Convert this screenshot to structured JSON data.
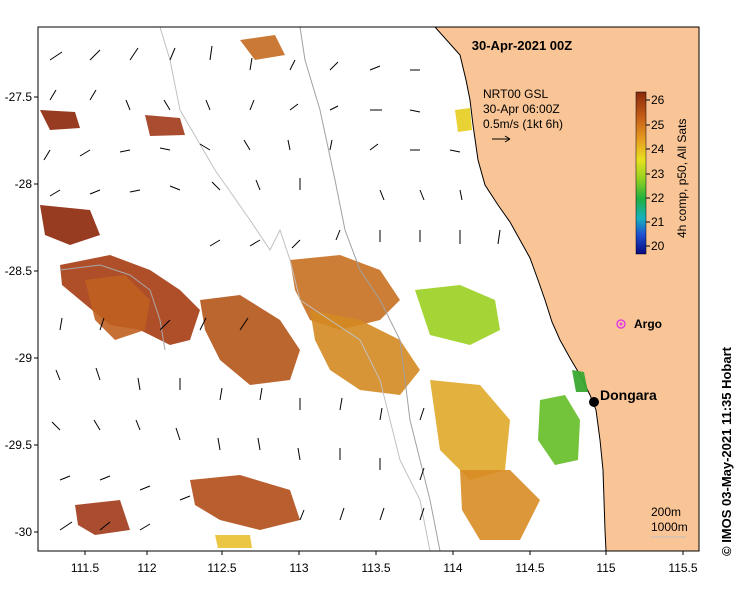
{
  "title": "30-Apr-2021 00Z",
  "credit": "©  IMOS 03-May-2021 11:35 Hobart",
  "current_legend": {
    "line1": "NRT00 GSL",
    "line2": "30-Apr 06:00Z",
    "line3": "0.5m/s (1kt 6h)"
  },
  "colorbar": {
    "label": "4h comp, p50, All Sats",
    "ticks": [
      "26",
      "25",
      "24",
      "23",
      "22",
      "21",
      "20"
    ],
    "min": 20,
    "max": 26.3
  },
  "lat_ticks": [
    "-27.5",
    "-28",
    "-28.5",
    "-29",
    "-29.5",
    "-30"
  ],
  "lon_ticks": [
    "111.5",
    "112",
    "112.5",
    "113",
    "113.5",
    "114",
    "114.5",
    "115",
    "115.5"
  ],
  "places": {
    "dongara": "Dongara",
    "argo": "Argo"
  },
  "isobaths": {
    "line1": "200m",
    "line2": "1000m"
  },
  "colors": {
    "land": "#f9c596",
    "ocean": "#ffffff",
    "argo": "#e040e0",
    "town": "#000000"
  }
}
